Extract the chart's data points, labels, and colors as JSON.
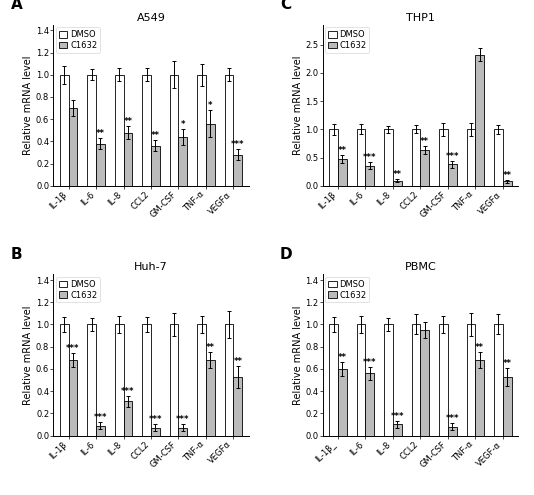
{
  "panels": {
    "A": {
      "title": "A549",
      "label": "A",
      "ylim": [
        0,
        1.45
      ],
      "yticks": [
        0.0,
        0.2,
        0.4,
        0.6,
        0.8,
        1.0,
        1.2,
        1.4
      ],
      "categories": [
        "IL-1β",
        "IL-6",
        "IL-8",
        "CCL2",
        "GM-CSF",
        "TNF-α",
        "VEGFα"
      ],
      "dmso": [
        1.0,
        1.0,
        1.0,
        1.0,
        1.0,
        1.0,
        1.0
      ],
      "c1632": [
        0.7,
        0.38,
        0.48,
        0.36,
        0.44,
        0.56,
        0.28
      ],
      "dmso_err": [
        0.08,
        0.05,
        0.06,
        0.06,
        0.12,
        0.1,
        0.06
      ],
      "c1632_err": [
        0.07,
        0.05,
        0.06,
        0.05,
        0.07,
        0.12,
        0.05
      ],
      "sig": [
        "",
        "**",
        "**",
        "**",
        "*",
        "*",
        "***"
      ],
      "sig_pos": [
        0.77,
        0.43,
        0.54,
        0.41,
        0.51,
        0.68,
        0.33
      ]
    },
    "B": {
      "title": "Huh-7",
      "label": "B",
      "ylim": [
        0,
        1.45
      ],
      "yticks": [
        0.0,
        0.2,
        0.4,
        0.6,
        0.8,
        1.0,
        1.2,
        1.4
      ],
      "categories": [
        "IL-1β",
        "IL-6",
        "IL-8",
        "CCL2",
        "GM-CSF",
        "TNF-α",
        "VEGFα"
      ],
      "dmso": [
        1.0,
        1.0,
        1.0,
        1.0,
        1.0,
        1.0,
        1.0
      ],
      "c1632": [
        0.68,
        0.09,
        0.31,
        0.07,
        0.07,
        0.68,
        0.53
      ],
      "dmso_err": [
        0.07,
        0.06,
        0.08,
        0.07,
        0.1,
        0.08,
        0.12
      ],
      "c1632_err": [
        0.06,
        0.03,
        0.05,
        0.03,
        0.03,
        0.07,
        0.1
      ],
      "sig": [
        "***",
        "***",
        "***",
        "***",
        "***",
        "**",
        "**"
      ],
      "sig_pos": [
        0.74,
        0.12,
        0.36,
        0.1,
        0.1,
        0.75,
        0.63
      ]
    },
    "C": {
      "title": "THP1",
      "label": "C",
      "ylim": [
        0,
        2.85
      ],
      "yticks": [
        0.0,
        0.5,
        1.0,
        1.5,
        2.0,
        2.5
      ],
      "categories": [
        "IL-1β",
        "IL-6",
        "IL-8",
        "CCL2",
        "GM-CSF",
        "TNF-α",
        "VEGFα"
      ],
      "dmso": [
        1.0,
        1.0,
        1.0,
        1.0,
        1.0,
        1.0,
        1.0
      ],
      "c1632": [
        0.48,
        0.36,
        0.09,
        0.63,
        0.38,
        2.32,
        0.08
      ],
      "dmso_err": [
        0.1,
        0.09,
        0.06,
        0.07,
        0.12,
        0.12,
        0.08
      ],
      "c1632_err": [
        0.07,
        0.06,
        0.03,
        0.07,
        0.06,
        0.11,
        0.03
      ],
      "sig": [
        "**",
        "***",
        "**",
        "**",
        "***",
        "",
        "**"
      ],
      "sig_pos": [
        0.55,
        0.42,
        0.12,
        0.7,
        0.44,
        2.44,
        0.11
      ]
    },
    "D": {
      "title": "PBMC",
      "label": "D",
      "ylim": [
        0,
        1.45
      ],
      "yticks": [
        0.0,
        0.2,
        0.4,
        0.6,
        0.8,
        1.0,
        1.2,
        1.4
      ],
      "categories": [
        "IL-1β_",
        "IL-6",
        "IL-8",
        "CCL2",
        "GM-CSF",
        "TNF-α",
        "VEGF-α"
      ],
      "dmso": [
        1.0,
        1.0,
        1.0,
        1.0,
        1.0,
        1.0,
        1.0
      ],
      "c1632": [
        0.6,
        0.56,
        0.1,
        0.95,
        0.08,
        0.68,
        0.53
      ],
      "dmso_err": [
        0.07,
        0.08,
        0.06,
        0.09,
        0.08,
        0.1,
        0.09
      ],
      "c1632_err": [
        0.06,
        0.06,
        0.03,
        0.07,
        0.03,
        0.07,
        0.08
      ],
      "sig": [
        "**",
        "***",
        "***",
        "",
        "***",
        "**",
        "**"
      ],
      "sig_pos": [
        0.66,
        0.62,
        0.13,
        1.02,
        0.11,
        0.75,
        0.61
      ]
    }
  },
  "bar_width": 0.32,
  "dmso_color": "#FFFFFF",
  "c1632_color": "#BBBBBB",
  "edge_color": "#000000",
  "ylabel": "Relative mRNA level",
  "legend_labels": [
    "DMSO",
    "C1632"
  ],
  "tick_fontsize": 6.0,
  "label_fontsize": 7.0,
  "title_fontsize": 8.0,
  "panel_label_fontsize": 11,
  "sig_fontsize": 6.0
}
